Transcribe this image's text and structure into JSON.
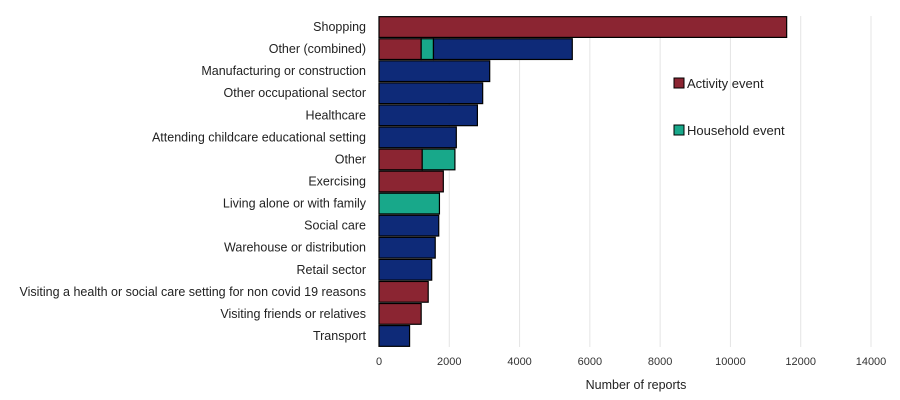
{
  "chart_data": {
    "type": "bar",
    "orientation": "horizontal",
    "stacked": true,
    "title": "",
    "xlabel": "Number of reports",
    "ylabel": "",
    "xlim": [
      0,
      14000
    ],
    "xticks": [
      0,
      2000,
      4000,
      6000,
      8000,
      10000,
      12000,
      14000
    ],
    "grid": "vertical",
    "legend_position": "right",
    "categories": [
      "Shopping",
      "Other (combined)",
      "Manufacturing or construction",
      "Other occupational sector",
      "Healthcare",
      "Attending childcare educational setting",
      "Other",
      "Exercising",
      "Living alone or with family",
      "Social care",
      "Warehouse or distribution",
      "Retail sector",
      "Visiting a health or social care setting for non covid 19 reasons",
      "Visiting friends or relatives",
      "Transport"
    ],
    "series": [
      {
        "name": "Activity event",
        "color": "#8b2532",
        "values": [
          11600,
          1200,
          0,
          0,
          0,
          0,
          1230,
          1830,
          0,
          0,
          0,
          0,
          1400,
          1200,
          0
        ]
      },
      {
        "name": "Household event",
        "color": "#18a88a",
        "values": [
          0,
          350,
          0,
          0,
          0,
          0,
          930,
          0,
          1720,
          0,
          0,
          0,
          0,
          0,
          0
        ]
      },
      {
        "color": "#0e2a78",
        "values": [
          0,
          3950,
          3150,
          2950,
          2800,
          2200,
          0,
          0,
          0,
          1700,
          1600,
          1500,
          0,
          0,
          870
        ]
      }
    ]
  }
}
